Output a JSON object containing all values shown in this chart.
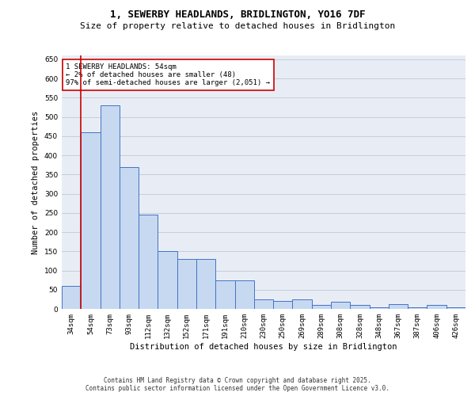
{
  "title_line1": "1, SEWERBY HEADLANDS, BRIDLINGTON, YO16 7DF",
  "title_line2": "Size of property relative to detached houses in Bridlington",
  "xlabel": "Distribution of detached houses by size in Bridlington",
  "ylabel": "Number of detached properties",
  "categories": [
    "34sqm",
    "54sqm",
    "73sqm",
    "93sqm",
    "112sqm",
    "132sqm",
    "152sqm",
    "171sqm",
    "191sqm",
    "210sqm",
    "230sqm",
    "250sqm",
    "269sqm",
    "289sqm",
    "308sqm",
    "328sqm",
    "348sqm",
    "367sqm",
    "387sqm",
    "406sqm",
    "426sqm"
  ],
  "values": [
    60,
    460,
    530,
    370,
    245,
    150,
    130,
    130,
    75,
    75,
    25,
    20,
    25,
    10,
    18,
    10,
    5,
    12,
    5,
    10,
    5
  ],
  "bar_color": "#c6d9f1",
  "bar_edge_color": "#4472c4",
  "highlight_index": 1,
  "highlight_line_color": "#cc0000",
  "annotation_text": "1 SEWERBY HEADLANDS: 54sqm\n← 2% of detached houses are smaller (48)\n97% of semi-detached houses are larger (2,051) →",
  "annotation_box_color": "#cc0000",
  "ylim": [
    0,
    660
  ],
  "yticks": [
    0,
    50,
    100,
    150,
    200,
    250,
    300,
    350,
    400,
    450,
    500,
    550,
    600,
    650
  ],
  "grid_color": "#c0c8d8",
  "background_color": "#e8edf5",
  "footer_line1": "Contains HM Land Registry data © Crown copyright and database right 2025.",
  "footer_line2": "Contains public sector information licensed under the Open Government Licence v3.0.",
  "title_fontsize": 9,
  "subtitle_fontsize": 8,
  "axis_label_fontsize": 7.5,
  "tick_fontsize": 6.5,
  "annotation_fontsize": 6.5,
  "footer_fontsize": 5.5
}
